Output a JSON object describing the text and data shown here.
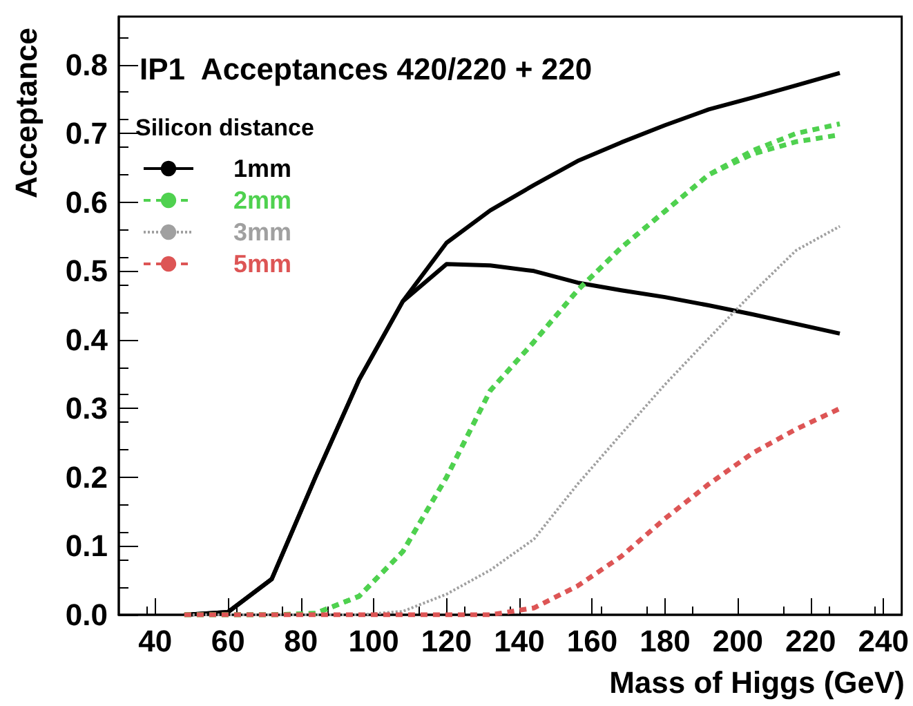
{
  "chart_data": {
    "type": "line",
    "title": "IP1  Acceptances 420/220 + 220",
    "xlabel": "Mass of Higgs (GeV)",
    "ylabel": "Acceptance",
    "legend_title": "Silicon distance",
    "x": [
      48,
      60,
      72,
      84,
      96,
      108,
      120,
      132,
      144,
      156,
      168,
      180,
      192,
      204,
      216,
      228
    ],
    "series": [
      {
        "name": "1mm",
        "color": "#000000",
        "line_style": "solid",
        "values": [
          0,
          0.004,
          0.052,
          0.2,
          0.342,
          0.456,
          0.541,
          0.588,
          0.625,
          0.66,
          0.687,
          0.712,
          0.735,
          0.752,
          0.77,
          0.788
        ]
      },
      {
        "color": "#000000",
        "line_style": "solid",
        "values": [
          0,
          0.004,
          0.052,
          0.2,
          0.342,
          0.456,
          0.51,
          0.508,
          0.5,
          0.483,
          0.472,
          0.462,
          0.45,
          0.437,
          0.423,
          0.409
        ]
      },
      {
        "name": "2mm",
        "color": "#4fd14f",
        "line_style": "dashed",
        "values": [
          0,
          0,
          0,
          0.002,
          0.027,
          0.092,
          0.2,
          0.326,
          0.397,
          0.472,
          0.534,
          0.587,
          0.64,
          0.675,
          0.7,
          0.714
        ]
      },
      {
        "color": "#4fd14f",
        "line_style": "dashed",
        "values": [
          0,
          0,
          0,
          0.002,
          0.027,
          0.092,
          0.2,
          0.326,
          0.397,
          0.472,
          0.534,
          0.587,
          0.64,
          0.67,
          0.688,
          0.698
        ]
      },
      {
        "name": "3mm",
        "color": "#a0a0a0",
        "line_style": "dotted",
        "values": [
          0,
          0,
          0,
          0,
          0,
          0.005,
          0.03,
          0.065,
          0.11,
          0.19,
          0.263,
          0.335,
          0.402,
          0.468,
          0.53,
          0.565
        ]
      },
      {
        "name": "5mm",
        "color": "#dd5555",
        "line_style": "dashed",
        "values": [
          0,
          0,
          0,
          0,
          0,
          0,
          0,
          0,
          0.01,
          0.042,
          0.085,
          0.14,
          0.19,
          0.235,
          0.27,
          0.3
        ]
      }
    ],
    "xlim": [
      30,
      245
    ],
    "xticks": [
      40,
      60,
      80,
      100,
      120,
      140,
      160,
      180,
      200,
      220,
      240
    ],
    "ylim": [
      0,
      0.87
    ],
    "yticks": [
      {
        "value": 0,
        "label": "0.0"
      },
      0.1,
      0.2,
      0.3,
      0.4,
      0.5,
      0.6,
      0.7,
      0.8
    ],
    "grid": false,
    "legend": "top left",
    "marker": "none"
  }
}
